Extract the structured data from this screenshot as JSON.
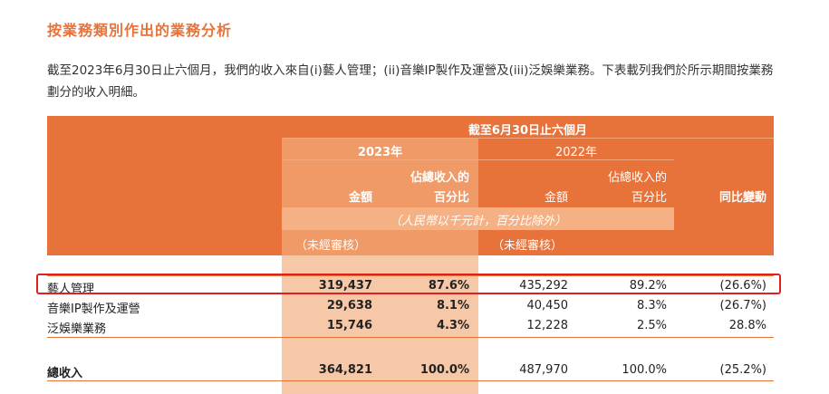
{
  "title": "按業務類別作出的業務分析",
  "paragraph": "截至2023年6月30日止六個月，我們的收入來自(i)藝人管理；(ii)音樂IP製作及運營及(iii)泛娛樂業務。下表載列我們於所示期間按業務劃分的收入明細。",
  "table": {
    "period_header": "截至6月30日止六個月",
    "year_2023": "2023年",
    "year_2022": "2022年",
    "col_amount": "金額",
    "col_pct_line1": "佔總收入的",
    "col_pct_line2": "百分比",
    "col_yoy": "同比變動",
    "unit_note": "（人民幣以千元計，百分比除外）",
    "unaudited": "（未經審核）",
    "rows": [
      {
        "name": "藝人管理",
        "amt2023": "319,437",
        "pct2023": "87.6%",
        "amt2022": "435,292",
        "pct2022": "89.2%",
        "yoy": "(26.6%)"
      },
      {
        "name": "音樂IP製作及運營",
        "amt2023": "29,638",
        "pct2023": "8.1%",
        "amt2022": "40,450",
        "pct2022": "8.3%",
        "yoy": "(26.7%)"
      },
      {
        "name": "泛娛樂業務",
        "amt2023": "15,746",
        "pct2023": "4.3%",
        "amt2022": "12,228",
        "pct2022": "2.5%",
        "yoy": "28.8%"
      }
    ],
    "total": {
      "name": "總收入",
      "amt2023": "364,821",
      "pct2023": "100.0%",
      "amt2022": "487,970",
      "pct2022": "100.0%",
      "yoy": "(25.2%)"
    }
  },
  "colors": {
    "accent": "#e8733a",
    "highlight": "#e02020"
  }
}
